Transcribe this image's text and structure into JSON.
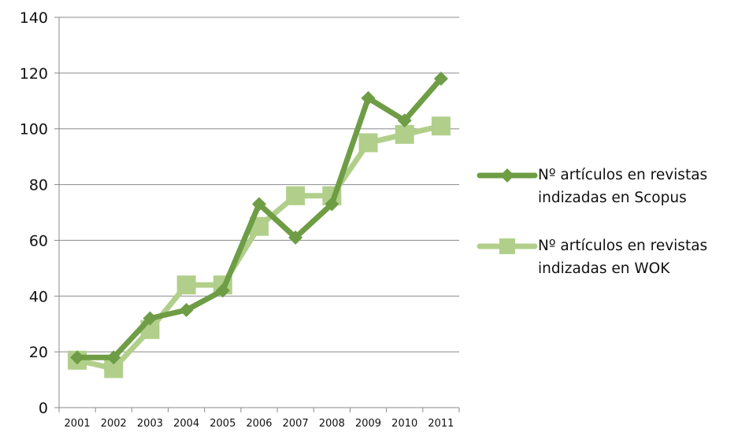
{
  "chart_data": {
    "type": "line",
    "title": "",
    "xlabel": "",
    "ylabel": "",
    "categories": [
      "2001",
      "2002",
      "2003",
      "2004",
      "2005",
      "2006",
      "2007",
      "2008",
      "2009",
      "2010",
      "2011"
    ],
    "ylim": [
      0,
      140
    ],
    "yticks": [
      0,
      20,
      40,
      60,
      80,
      100,
      120,
      140
    ],
    "grid": true,
    "legend_position": "right",
    "series": [
      {
        "name": "Nº artículos en revistas indizadas en Scopus",
        "values": [
          18,
          18,
          32,
          35,
          42,
          73,
          61,
          73,
          111,
          103,
          118
        ],
        "color": "#6E9D45",
        "marker": "diamond"
      },
      {
        "name": "Nº artículos en revistas indizadas en WOK",
        "values": [
          17,
          14,
          28,
          44,
          44,
          65,
          76,
          76,
          95,
          98,
          101
        ],
        "color": "#B1CF8A",
        "marker": "square"
      }
    ]
  }
}
